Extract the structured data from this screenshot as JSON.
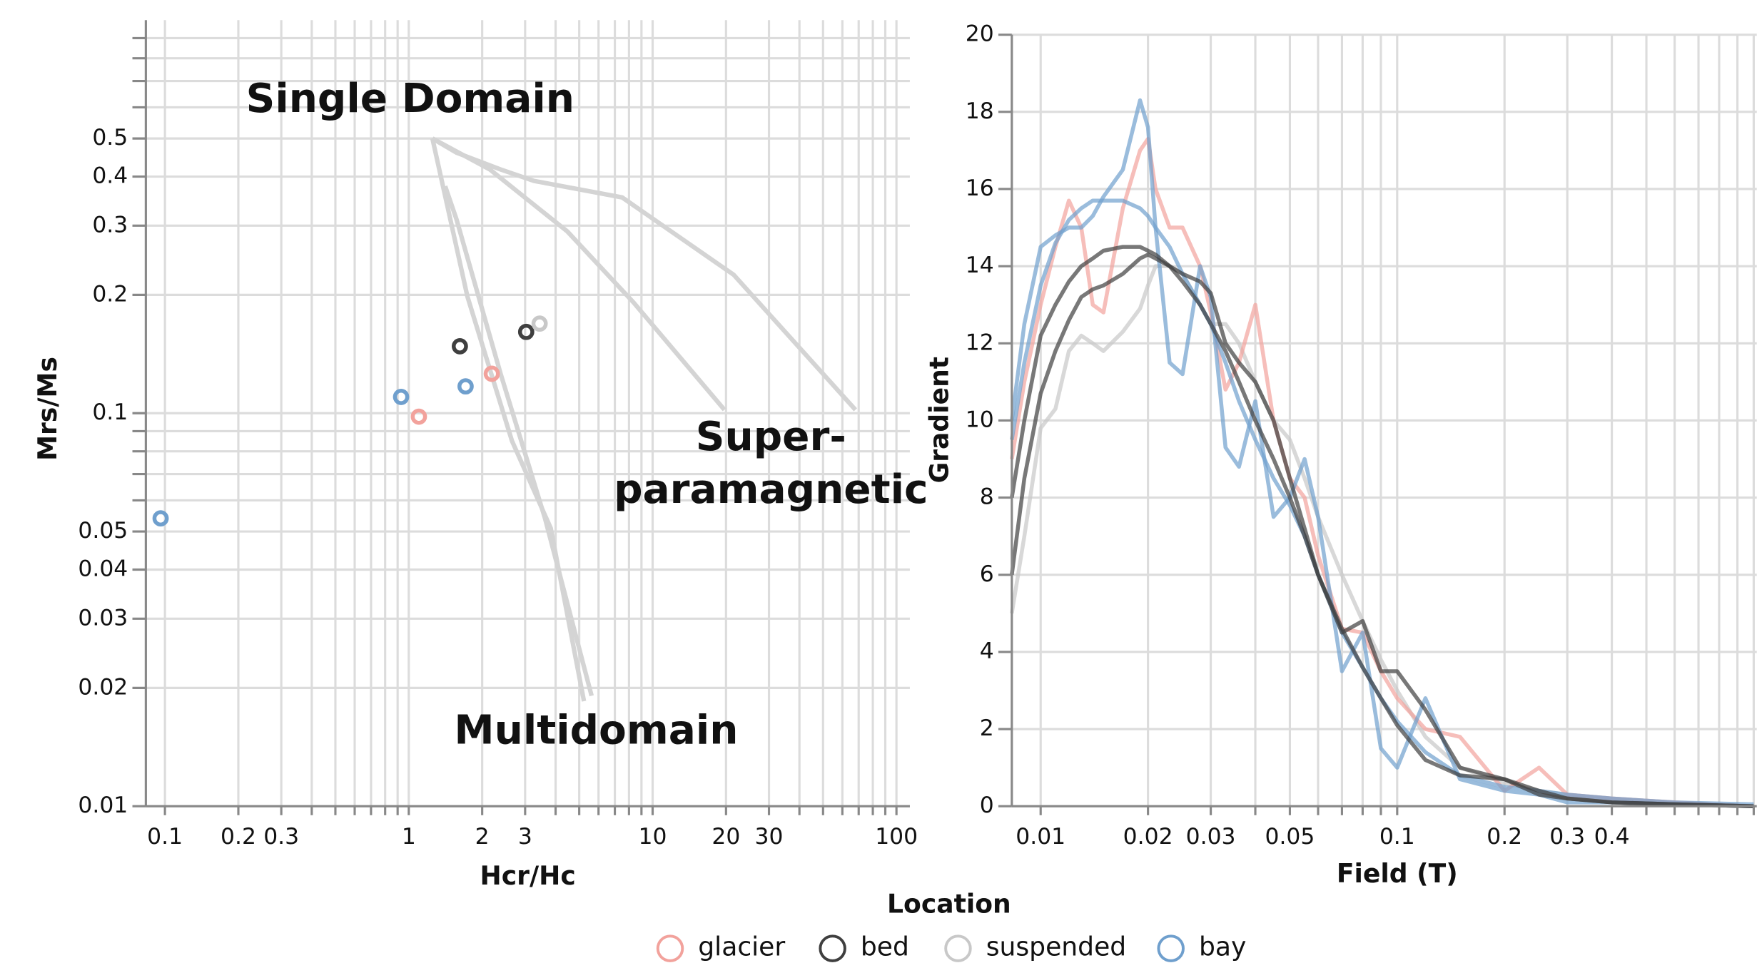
{
  "chart_data": [
    {
      "type": "scatter",
      "xlabel": "Hcr/Hc",
      "ylabel": "Mrs/Ms",
      "log_x": true,
      "log_y": true,
      "xlim": [
        0.0835,
        113.5
      ],
      "ylim": [
        0.01,
        1
      ],
      "xticks": [
        0.1,
        0.2,
        0.3,
        1,
        2,
        3,
        10,
        20,
        30,
        100
      ],
      "xminor": [
        0.4,
        0.5,
        0.6,
        0.7,
        0.8,
        0.9,
        4,
        5,
        6,
        7,
        8,
        9,
        40,
        50,
        60,
        70,
        80,
        90
      ],
      "yticks": [
        0.01,
        0.02,
        0.03,
        0.04,
        0.05,
        0.1,
        0.2,
        0.3,
        0.4,
        0.5
      ],
      "yminor": [
        0.06,
        0.07,
        0.08,
        0.09,
        0.6,
        0.7,
        0.8,
        0.9
      ],
      "grid": true,
      "annotations": [
        "Single Domain",
        "Super-",
        "paramagnetic",
        "Multidomain"
      ],
      "reference_lines": {
        "color": "#d4d4d4",
        "lines": [
          {
            "x": [
              1.25,
              1.57,
              2.38,
              3.26,
              7.5,
              21.5,
              67.9
            ],
            "y": [
              0.5,
              0.46,
              0.417,
              0.39,
              0.354,
              0.225,
              0.102
            ]
          },
          {
            "x": [
              1.25,
              2.15,
              4.47,
              8.37,
              19.7
            ],
            "y": [
              0.5,
              0.417,
              0.29,
              0.191,
              0.102
            ]
          },
          {
            "x": [
              1.25,
              1.74,
              2.65,
              3.82,
              5.23
            ],
            "y": [
              0.5,
              0.198,
              0.085,
              0.051,
              0.0185
            ]
          },
          {
            "x": [
              1.41,
              1.57,
              2.38,
              3.62,
              5.62
            ],
            "y": [
              0.378,
              0.311,
              0.126,
              0.054,
              0.0191
            ]
          }
        ]
      },
      "legend_title": "Location",
      "legend_position": "bottom",
      "series": [
        {
          "name": "glacier",
          "color": "#f2a29c",
          "x": [
            1.1,
            2.19
          ],
          "y": [
            0.098,
            0.126
          ]
        },
        {
          "name": "bed",
          "color": "#3f3f3f",
          "x": [
            1.62,
            3.03
          ],
          "y": [
            0.148,
            0.161
          ]
        },
        {
          "name": "suspended",
          "color": "#c8c8c8",
          "x": [
            3.44
          ],
          "y": [
            0.169
          ]
        },
        {
          "name": "bay",
          "color": "#6f9fcd",
          "x": [
            0.096,
            0.93,
            1.71
          ],
          "y": [
            0.054,
            0.11,
            0.117
          ]
        }
      ]
    },
    {
      "type": "line",
      "xlabel": "Field (T)",
      "ylabel": "Gradient",
      "log_x": true,
      "xlim": [
        0.0083,
        1.02
      ],
      "ylim": [
        0,
        20
      ],
      "xticks": [
        0.01,
        0.02,
        0.03,
        0.05,
        0.1,
        0.2,
        0.3,
        0.4
      ],
      "xminor": [
        0.04,
        0.06,
        0.07,
        0.08,
        0.09,
        0.5,
        0.6,
        0.7,
        0.8,
        0.9,
        1
      ],
      "yticks": [
        0,
        2,
        4,
        6,
        8,
        10,
        12,
        14,
        16,
        18,
        20
      ],
      "grid": true,
      "opacity": 0.7,
      "x": [
        0.0083,
        0.009,
        0.01,
        0.011,
        0.012,
        0.013,
        0.014,
        0.015,
        0.017,
        0.019,
        0.02,
        0.021,
        0.023,
        0.025,
        0.028,
        0.03,
        0.033,
        0.036,
        0.04,
        0.045,
        0.05,
        0.055,
        0.06,
        0.07,
        0.08,
        0.09,
        0.1,
        0.12,
        0.15,
        0.2,
        0.25,
        0.3,
        0.4,
        0.6,
        1.0
      ],
      "series": [
        {
          "color": "#c8c8c8",
          "values": [
            5,
            7,
            9.8,
            10.3,
            11.8,
            12.2,
            12,
            11.8,
            12.3,
            12.9,
            13.5,
            14,
            14,
            13.8,
            13,
            12.5,
            12.5,
            12,
            11,
            10,
            9.5,
            8.5,
            7.5,
            6,
            4.8,
            3.8,
            3,
            1.8,
            1,
            0.6,
            0.4,
            0.3,
            0.2,
            0.1,
            0
          ]
        },
        {
          "color": "#f2a29c",
          "values": [
            9,
            11,
            13,
            14.5,
            15.7,
            15,
            13,
            12.8,
            15.5,
            17,
            17.3,
            16,
            15,
            15,
            14,
            12.8,
            10.8,
            11.5,
            13,
            10,
            8.5,
            8,
            6.5,
            4.6,
            4.5,
            3.5,
            2.8,
            2,
            1.8,
            0.4,
            1,
            0.3,
            0.2,
            0.1,
            0
          ]
        },
        {
          "color": "#6f9fcd",
          "values": [
            10,
            12.5,
            14.5,
            14.8,
            15,
            15,
            15.3,
            15.8,
            16.5,
            18.3,
            17.6,
            15,
            11.5,
            11.2,
            14,
            13.2,
            9.3,
            8.8,
            10.5,
            7.5,
            8,
            9,
            7.5,
            3.5,
            4.5,
            1.5,
            1,
            2.8,
            0.7,
            0.4,
            0.3,
            0.1,
            0.1,
            0.05,
            0
          ]
        },
        {
          "color": "#6f9fcd",
          "values": [
            9.5,
            11.5,
            13.5,
            14.6,
            15.2,
            15.5,
            15.7,
            15.7,
            15.7,
            15.5,
            15.3,
            15,
            14.5,
            13.8,
            13,
            12.5,
            11.5,
            10.5,
            9.5,
            8.5,
            7.8,
            7,
            6,
            4.5,
            3.6,
            2.8,
            2.2,
            1.4,
            0.8,
            0.5,
            0.4,
            0.3,
            0.2,
            0.1,
            0.05
          ]
        },
        {
          "color": "#3f3f3f",
          "values": [
            8,
            10,
            12.2,
            13,
            13.6,
            14,
            14.2,
            14.4,
            14.5,
            14.5,
            14.4,
            14.3,
            14,
            13.6,
            13,
            12.5,
            11.8,
            11,
            10,
            9,
            8,
            7,
            6,
            4.6,
            3.6,
            2.8,
            2.1,
            1.2,
            0.8,
            0.7,
            0.3,
            0.2,
            0.1,
            0.05,
            0
          ]
        },
        {
          "color": "#3f3f3f",
          "values": [
            6,
            8.5,
            10.7,
            11.8,
            12.6,
            13.2,
            13.4,
            13.5,
            13.8,
            14.2,
            14.3,
            14.2,
            14,
            13.8,
            13.6,
            13.3,
            12,
            11.5,
            11,
            10,
            8.5,
            7.2,
            6,
            4.5,
            4.8,
            3.5,
            3.5,
            2.5,
            1,
            0.7,
            0.4,
            0.2,
            0.1,
            0.05,
            0
          ]
        }
      ]
    }
  ]
}
